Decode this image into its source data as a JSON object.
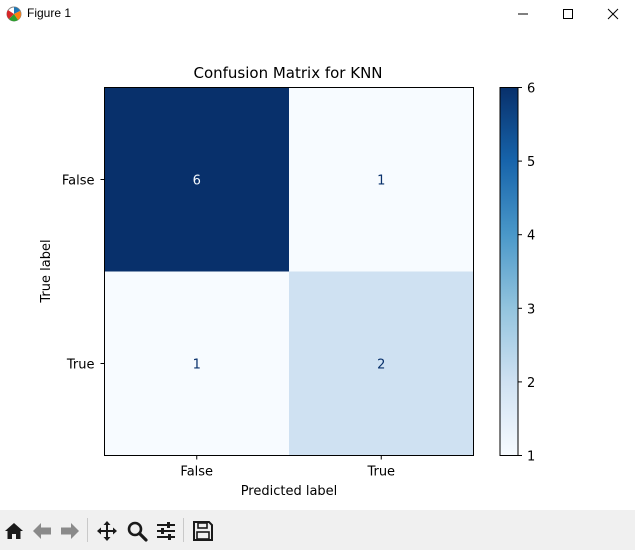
{
  "window": {
    "title": "Figure 1"
  },
  "icons": {
    "app": "matplotlib-app-icon",
    "minimize": "minimize-icon",
    "maximize": "maximize-icon",
    "close": "close-icon"
  },
  "toolbar": {
    "buttons": [
      {
        "name": "home-icon"
      },
      {
        "name": "back-arrow-icon"
      },
      {
        "name": "forward-arrow-icon"
      },
      {
        "name": "pan-move-icon"
      },
      {
        "name": "zoom-magnifier-icon"
      },
      {
        "name": "configure-subplots-icon"
      },
      {
        "name": "save-floppy-icon"
      }
    ]
  },
  "chart_data": {
    "type": "heatmap",
    "title": "Confusion Matrix for KNN",
    "xlabel": "Predicted label",
    "ylabel": "True label",
    "x_categories": [
      "False",
      "True"
    ],
    "y_categories": [
      "False",
      "True"
    ],
    "values": [
      [
        6,
        1
      ],
      [
        1,
        2
      ]
    ],
    "colormap": "Blues",
    "colorbar": {
      "min": 1,
      "max": 6,
      "ticks": [
        "1",
        "2",
        "3",
        "4",
        "5",
        "6"
      ]
    },
    "colors": {
      "low": "#f7fbff",
      "mid": "#cfe1f2",
      "high": "#08306b",
      "text_dark": "#08306b",
      "text_light": "#f7fbff"
    }
  }
}
